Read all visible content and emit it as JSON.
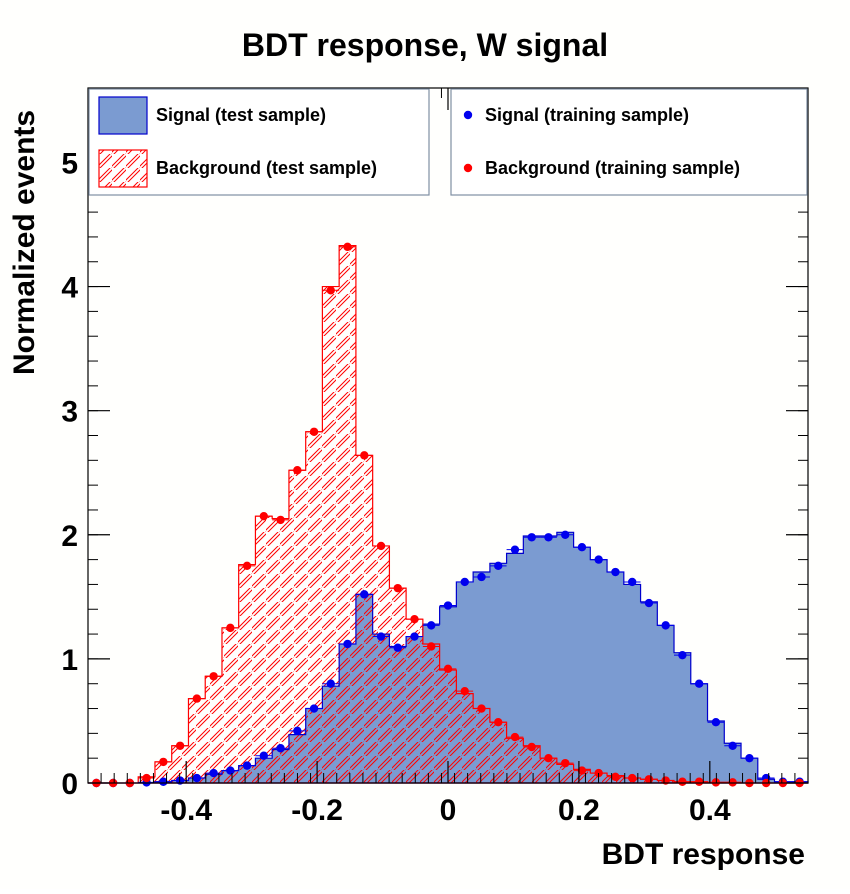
{
  "chart_data": {
    "type": "histogram",
    "title": "BDT response, W signal",
    "xlabel": "BDT response",
    "ylabel": "Normalized events",
    "xlim": [
      -0.55,
      0.55
    ],
    "ylim": [
      0,
      5.6
    ],
    "x_ticks": [
      -0.4,
      -0.2,
      0,
      0.2,
      0.4
    ],
    "x_tick_labels": [
      "-0.4",
      "-0.2",
      "0",
      "0.2",
      "0.4"
    ],
    "y_ticks": [
      0,
      1,
      2,
      3,
      4,
      5
    ],
    "y_tick_labels": [
      "0",
      "1",
      "2",
      "3",
      "4",
      "5"
    ],
    "bin_edges": [
      -0.55,
      -0.5244,
      -0.4988,
      -0.4733,
      -0.4477,
      -0.4221,
      -0.3965,
      -0.3709,
      -0.3453,
      -0.3198,
      -0.2942,
      -0.2686,
      -0.243,
      -0.2174,
      -0.1919,
      -0.1663,
      -0.1407,
      -0.1151,
      -0.0895,
      -0.064,
      -0.0384,
      -0.0128,
      0.0128,
      0.0384,
      0.064,
      0.0895,
      0.1151,
      0.1407,
      0.1663,
      0.1919,
      0.2174,
      0.243,
      0.2686,
      0.2942,
      0.3198,
      0.3453,
      0.3709,
      0.3965,
      0.4221,
      0.4477,
      0.4733,
      0.4988,
      0.5244,
      0.55
    ],
    "series": [
      {
        "name": "Signal (test sample)",
        "style": "filled",
        "fill": "#7b9bd1",
        "line": "#0000cc",
        "values": [
          0,
          0,
          0,
          0,
          0.01,
          0.02,
          0.04,
          0.07,
          0.1,
          0.14,
          0.2,
          0.27,
          0.39,
          0.6,
          0.78,
          1.12,
          1.52,
          1.2,
          1.1,
          1.18,
          1.28,
          1.42,
          1.62,
          1.7,
          1.77,
          1.85,
          1.99,
          1.99,
          2.02,
          1.9,
          1.8,
          1.7,
          1.6,
          1.46,
          1.27,
          1.05,
          0.8,
          0.5,
          0.32,
          0.2,
          0.03,
          0.01,
          0.01
        ]
      },
      {
        "name": "Background (test sample)",
        "style": "hatched",
        "line": "#ff0000",
        "values": [
          0,
          0,
          0,
          0.05,
          0.17,
          0.3,
          0.68,
          0.86,
          1.25,
          1.76,
          2.15,
          2.13,
          2.52,
          2.83,
          4.0,
          4.33,
          2.64,
          1.91,
          1.57,
          1.32,
          1.12,
          0.91,
          0.72,
          0.6,
          0.49,
          0.36,
          0.3,
          0.2,
          0.15,
          0.11,
          0.08,
          0.06,
          0.04,
          0.03,
          0.02,
          0.01,
          0.01,
          0.005,
          0.005,
          0,
          0,
          0,
          0
        ]
      },
      {
        "name": "Signal (training sample)",
        "style": "points",
        "color": "#0000ee",
        "values": [
          0,
          0,
          0,
          0.005,
          0.01,
          0.02,
          0.04,
          0.08,
          0.1,
          0.14,
          0.22,
          0.28,
          0.42,
          0.6,
          0.8,
          1.12,
          1.52,
          1.18,
          1.09,
          1.18,
          1.27,
          1.43,
          1.62,
          1.66,
          1.75,
          1.88,
          1.98,
          1.98,
          2.0,
          1.9,
          1.8,
          1.7,
          1.62,
          1.45,
          1.27,
          1.03,
          0.8,
          0.49,
          0.3,
          0.2,
          0.04,
          0.01,
          0.01
        ]
      },
      {
        "name": "Background (training sample)",
        "style": "points",
        "color": "#ff0000",
        "values": [
          0,
          0,
          0,
          0.04,
          0.17,
          0.3,
          0.68,
          0.86,
          1.25,
          1.75,
          2.15,
          2.12,
          2.52,
          2.83,
          3.97,
          4.32,
          2.64,
          1.91,
          1.57,
          1.32,
          1.1,
          0.92,
          0.74,
          0.6,
          0.49,
          0.37,
          0.29,
          0.2,
          0.16,
          0.1,
          0.08,
          0.05,
          0.04,
          0.03,
          0.02,
          0.01,
          0.01,
          0.005,
          0.005,
          0,
          0,
          0,
          0
        ]
      }
    ],
    "legend": [
      {
        "label": "Signal (test sample)",
        "swatch": "filled-blue"
      },
      {
        "label": "Background (test sample)",
        "swatch": "hatched-red"
      },
      {
        "label": "Signal (training sample)",
        "swatch": "dot-blue"
      },
      {
        "label": "Background (training sample)",
        "swatch": "dot-red"
      }
    ],
    "legend_placement": "top, two boxes spanning the frame",
    "grid": false
  }
}
